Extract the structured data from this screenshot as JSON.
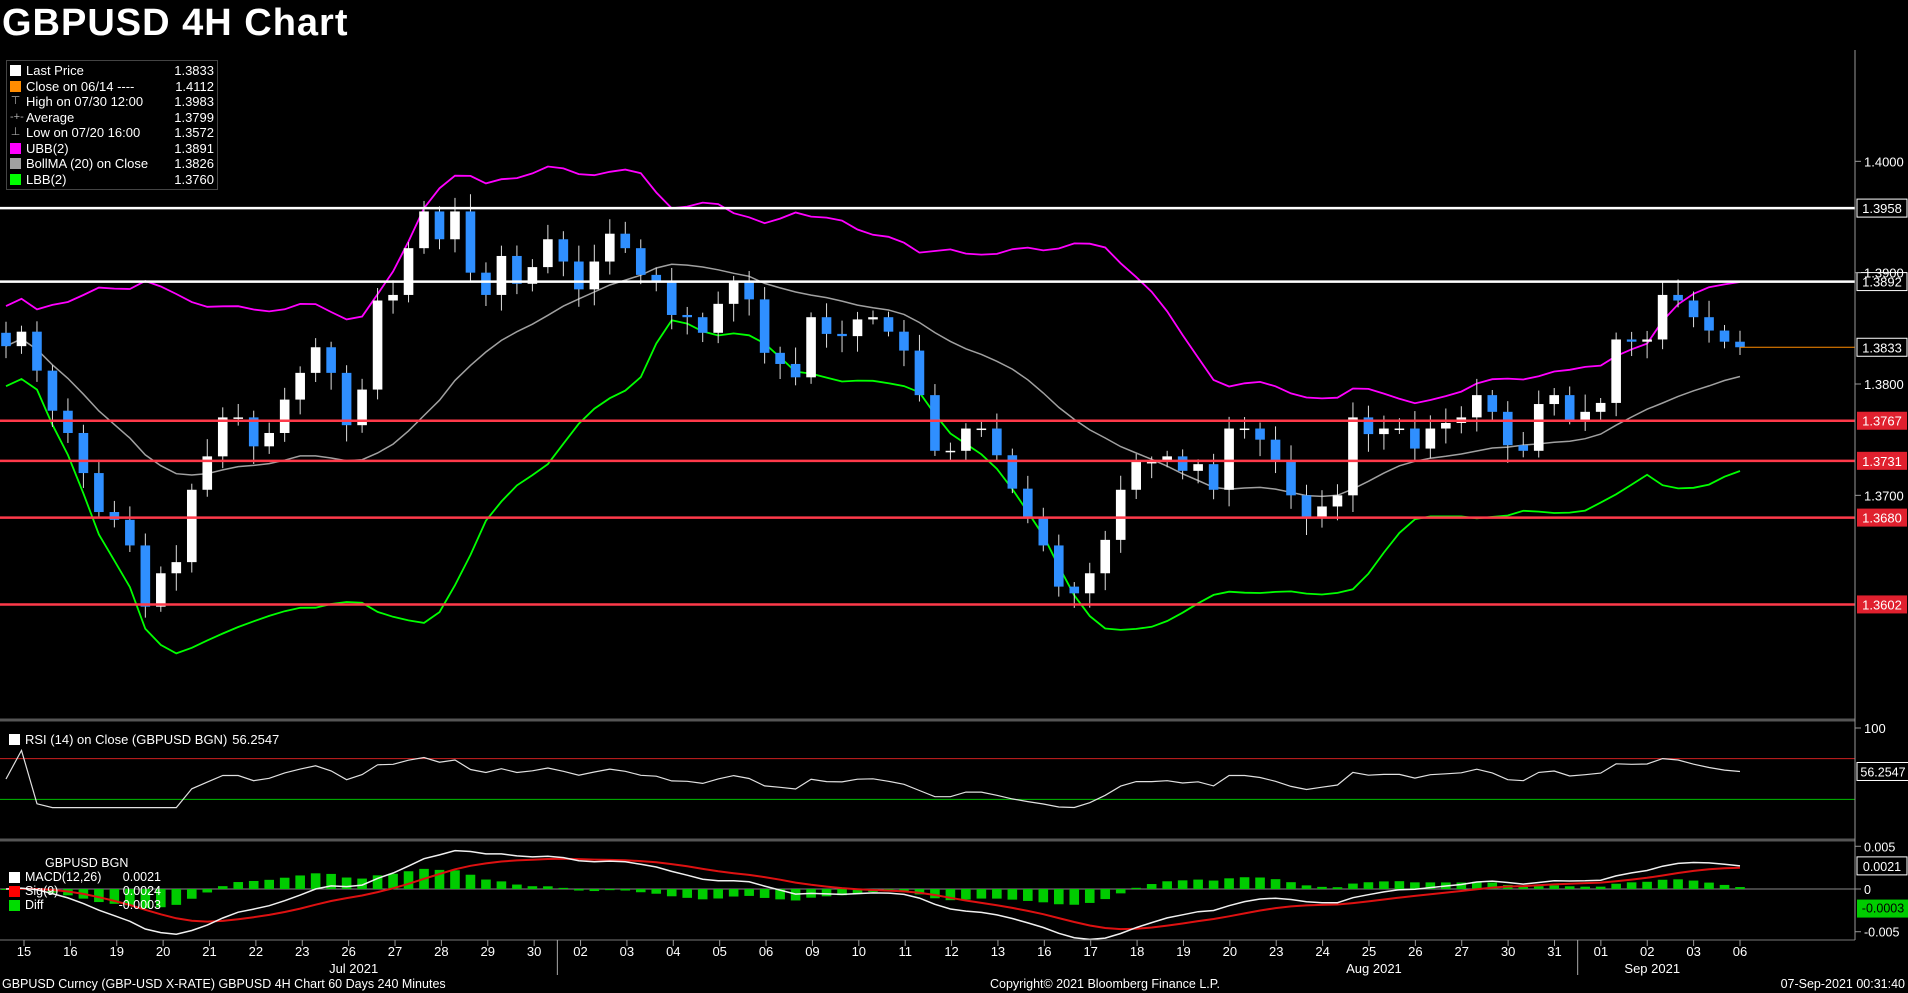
{
  "title": "GBPUSD 4H Chart",
  "legend": [
    {
      "label": "Last Price",
      "value": "1.3833",
      "swatch": "#ffffff",
      "kind": "box"
    },
    {
      "label": "Close on 06/14 ----",
      "value": "1.4112",
      "swatch": "#ff8c00",
      "kind": "box"
    },
    {
      "label": "High on 07/30 12:00",
      "value": "1.3983",
      "glyph": "⊤",
      "kind": "glyph"
    },
    {
      "label": "Average",
      "value": "1.3799",
      "glyph": "-+-",
      "kind": "glyph"
    },
    {
      "label": "Low on 07/20 16:00",
      "value": "1.3572",
      "glyph": "⊥",
      "kind": "glyph"
    },
    {
      "label": "UBB(2)",
      "value": "1.3891",
      "swatch": "#ff00ff",
      "kind": "box"
    },
    {
      "label": "BollMA (20)  on Close",
      "value": "1.3826",
      "swatch": "#a0a0a0",
      "kind": "box"
    },
    {
      "label": "LBB(2)",
      "value": "1.3760",
      "swatch": "#00ff00",
      "kind": "box"
    }
  ],
  "rsi_legend": {
    "label": "RSI (14)  on Close (GBPUSD BGN)",
    "value": "56.2547"
  },
  "macd_legend": {
    "title": "GBPUSD BGN",
    "rows": [
      {
        "label": "MACD(12,26)",
        "value": "0.0021",
        "swatch": "#ffffff"
      },
      {
        "label": "Sig(9)",
        "value": "0.0024",
        "swatch": "#ff0000"
      },
      {
        "label": "Diff",
        "value": "-0.0003",
        "swatch": "#00dd00"
      }
    ]
  },
  "footer": {
    "left": "GBPUSD Curncy (GBP-USD X-RATE) GBPUSD 4H Chart 60 Days 240 Minutes",
    "center": "Copyright© 2021 Bloomberg Finance L.P.",
    "right": "07-Sep-2021 00:31:40"
  },
  "colors": {
    "bullish": "#ffffff",
    "bearish": "#2f8fff",
    "ubb": "#ff00ff",
    "boll_ma": "#a0a0a0",
    "lbb": "#00ff00",
    "resistance": "#ffffff",
    "support": "#ff3a4a",
    "last_price_line": "#ff8c00"
  },
  "chart_data": [
    {
      "type": "candlestick",
      "title": "GBPUSD 4H Chart",
      "ylim": [
        1.35,
        1.41
      ],
      "y_ticks": [
        "1.4000",
        "1.3900",
        "1.3800",
        "1.3700"
      ],
      "x_ticks": [
        "15",
        "16",
        "19",
        "20",
        "21",
        "22",
        "23",
        "26",
        "27",
        "28",
        "29",
        "30",
        "02",
        "03",
        "04",
        "05",
        "06",
        "09",
        "10",
        "11",
        "12",
        "13",
        "16",
        "17",
        "18",
        "19",
        "20",
        "23",
        "24",
        "25",
        "26",
        "27",
        "30",
        "31",
        "01",
        "02",
        "03",
        "06"
      ],
      "month_labels": [
        "Jul 2021",
        "Aug 2021",
        "Sep 2021"
      ],
      "close": [
        1.3834,
        1.3847,
        1.3812,
        1.3776,
        1.3756,
        1.372,
        1.3685,
        1.3678,
        1.3655,
        1.36,
        1.363,
        1.364,
        1.3705,
        1.3735,
        1.377,
        1.377,
        1.3744,
        1.3756,
        1.3786,
        1.381,
        1.3833,
        1.381,
        1.3763,
        1.3795,
        1.3875,
        1.388,
        1.3922,
        1.3955,
        1.393,
        1.3955,
        1.39,
        1.388,
        1.3915,
        1.389,
        1.3905,
        1.393,
        1.391,
        1.3885,
        1.391,
        1.3935,
        1.3922,
        1.3898,
        1.3892,
        1.3862,
        1.386,
        1.3846,
        1.3872,
        1.3892,
        1.3876,
        1.3828,
        1.3818,
        1.3806,
        1.386,
        1.3845,
        1.3843,
        1.3858,
        1.386,
        1.3847,
        1.383,
        1.379,
        1.374,
        1.374,
        1.376,
        1.376,
        1.3736,
        1.3706,
        1.368,
        1.3655,
        1.3618,
        1.3612,
        1.363,
        1.366,
        1.3705,
        1.373,
        1.373,
        1.3735,
        1.3722,
        1.3728,
        1.3705,
        1.376,
        1.376,
        1.375,
        1.373,
        1.37,
        1.368,
        1.369,
        1.37,
        1.377,
        1.3755,
        1.376,
        1.376,
        1.3742,
        1.376,
        1.3765,
        1.377,
        1.379,
        1.3775,
        1.3745,
        1.374,
        1.3782,
        1.379,
        1.3768,
        1.3775,
        1.3783,
        1.384,
        1.3838,
        1.384,
        1.388,
        1.3875,
        1.386,
        1.3848,
        1.3838,
        1.3833
      ],
      "last_price": 1.3833,
      "horizontal_levels": [
        {
          "value": 1.3958,
          "label": "1.3958",
          "kind": "resistance"
        },
        {
          "value": 1.3892,
          "label": "1.3892",
          "kind": "resistance"
        },
        {
          "value": 1.3767,
          "label": "1.3767",
          "kind": "support"
        },
        {
          "value": 1.3731,
          "label": "1.3731",
          "kind": "support"
        },
        {
          "value": 1.368,
          "label": "1.3680",
          "kind": "support"
        },
        {
          "value": 1.3602,
          "label": "1.3602",
          "kind": "support"
        }
      ],
      "last_price_label": "1.3833"
    },
    {
      "type": "line",
      "name": "RSI (14)",
      "ylim": [
        0,
        100
      ],
      "y_ticks": [
        "100"
      ],
      "levels": [
        70,
        30
      ],
      "last_value_label": "56.2547"
    },
    {
      "type": "line",
      "name": "MACD(12,26)",
      "ylim": [
        -0.0055,
        0.0055
      ],
      "y_ticks": [
        "0.005",
        "0",
        "-0.005"
      ],
      "macd_last": "0.0021",
      "diff_last": "-0.0003"
    }
  ]
}
